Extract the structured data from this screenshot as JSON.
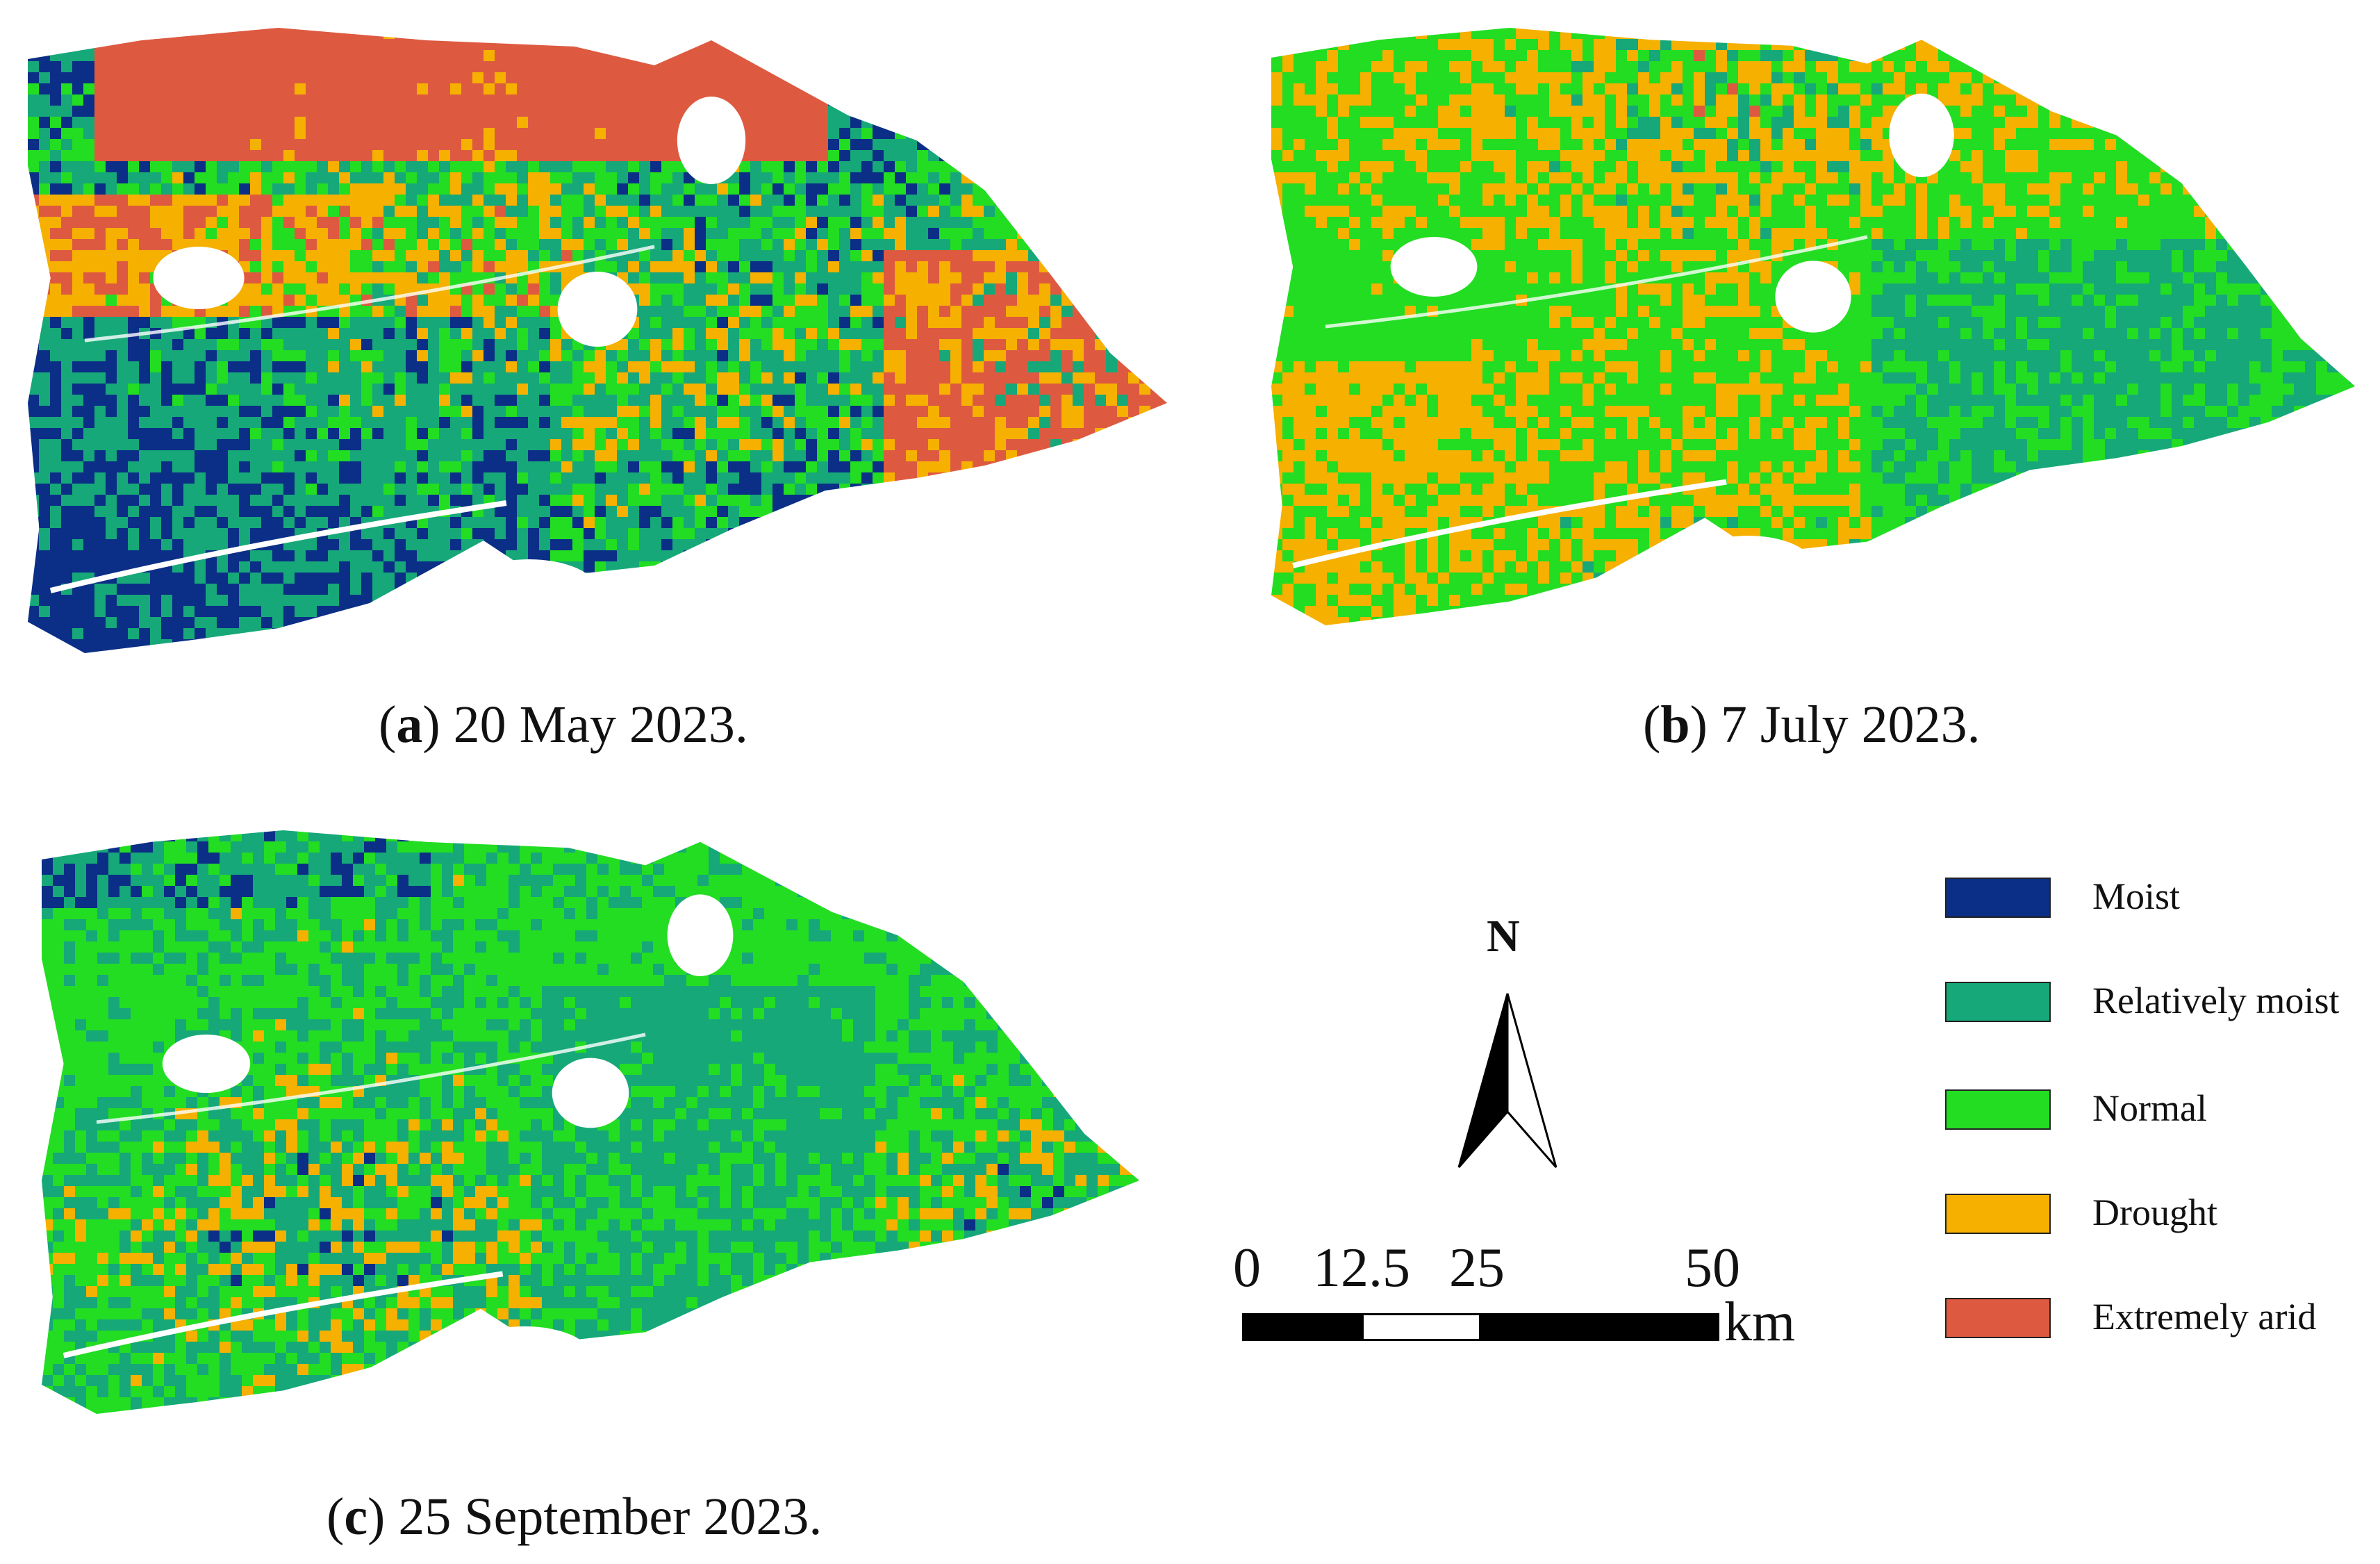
{
  "panels": [
    {
      "id": "a",
      "letter": "a",
      "date": "20 May 2023.",
      "dominant": [
        "moist",
        "rel_moist",
        "normal",
        "drought",
        "arid"
      ]
    },
    {
      "id": "b",
      "letter": "b",
      "date": "7 July 2023.",
      "dominant": [
        "normal",
        "drought",
        "rel_moist"
      ]
    },
    {
      "id": "c",
      "letter": "c",
      "date": "25 September 2023.",
      "dominant": [
        "normal",
        "rel_moist",
        "drought",
        "moist"
      ]
    }
  ],
  "north_arrow": {
    "label": "N"
  },
  "scale_bar": {
    "ticks": [
      "0",
      "12.5",
      "25",
      "50"
    ],
    "unit": "km"
  },
  "legend": {
    "items": [
      {
        "key": "moist",
        "label": "Moist",
        "color": "#0b2e86"
      },
      {
        "key": "rel_moist",
        "label": "Relatively moist",
        "color": "#16a878"
      },
      {
        "key": "normal",
        "label": "Normal",
        "color": "#22dd22"
      },
      {
        "key": "drought",
        "label": "Drought",
        "color": "#f5b000"
      },
      {
        "key": "arid",
        "label": "Extremely arid",
        "color": "#dd5a40"
      }
    ]
  }
}
